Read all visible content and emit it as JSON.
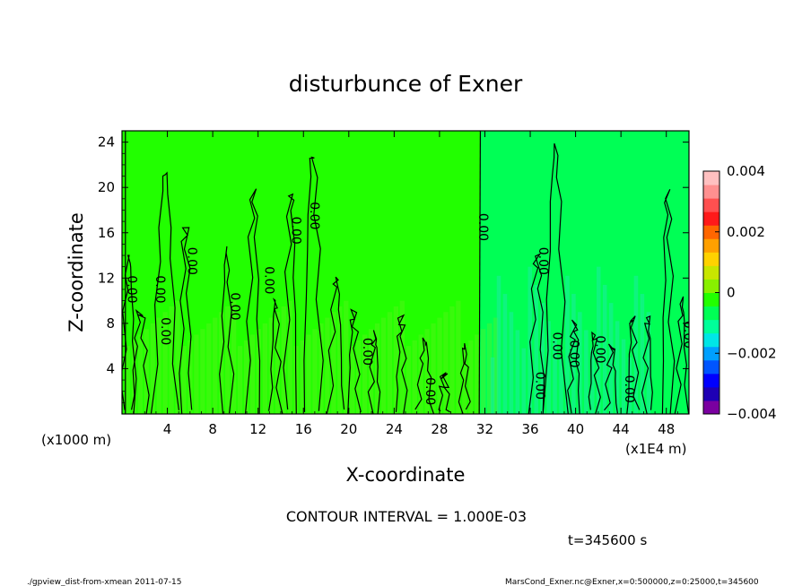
{
  "chart_data": {
    "type": "heatmap",
    "title": "disturbunce of Exner",
    "xlabel": "X-coordinate",
    "ylabel": "Z-coordinate",
    "x_unit": "(x1E4 m)",
    "y_unit": "(x1000 m)",
    "xlim": [
      0,
      50
    ],
    "ylim": [
      0,
      25
    ],
    "x_ticks": [
      4,
      8,
      12,
      16,
      20,
      24,
      28,
      32,
      36,
      40,
      44,
      48
    ],
    "y_ticks": [
      4,
      8,
      12,
      16,
      20,
      24
    ],
    "colorbar": {
      "vmin": -0.004,
      "vmax": 0.004,
      "tick_values": [
        0.004,
        0.002,
        0,
        -0.002,
        -0.004
      ],
      "tick_labels": [
        "0.004",
        "0.002",
        "0",
        "−0.002",
        "−0.004"
      ],
      "colors": [
        "#7a00a0",
        "#1e00b4",
        "#0000ff",
        "#0055ff",
        "#00a0ff",
        "#00e6e6",
        "#00ff9a",
        "#00ff55",
        "#22ff00",
        "#88f000",
        "#c8e600",
        "#ffd200",
        "#ffa000",
        "#ff6600",
        "#ff1a1a",
        "#ff5050",
        "#ff9090",
        "#ffc0c0"
      ]
    },
    "contour_interval_text": "CONTOUR INTERVAL = 1.000E-03",
    "contour_labels": [
      {
        "x": 0.5,
        "y": 11,
        "text": "0.00"
      },
      {
        "x": 3,
        "y": 11,
        "text": "0.00"
      },
      {
        "x": 3.5,
        "y": 7.3,
        "text": "0.00"
      },
      {
        "x": 5.8,
        "y": 13.5,
        "text": "0.00"
      },
      {
        "x": 9.6,
        "y": 9.5,
        "text": "0.00"
      },
      {
        "x": 12.6,
        "y": 11.8,
        "text": "0.00"
      },
      {
        "x": 15,
        "y": 16.2,
        "text": "0.00"
      },
      {
        "x": 16.6,
        "y": 17.5,
        "text": "0.00"
      },
      {
        "x": 21.3,
        "y": 5.5,
        "text": "0.00"
      },
      {
        "x": 26.8,
        "y": 2,
        "text": "0.00"
      },
      {
        "x": 31.5,
        "y": 16.5,
        "text": "0.00"
      },
      {
        "x": 36.5,
        "y": 2.5,
        "text": "0.00"
      },
      {
        "x": 36.8,
        "y": 13.5,
        "text": "0.00"
      },
      {
        "x": 38,
        "y": 6,
        "text": "0.00"
      },
      {
        "x": 39.5,
        "y": 5.3,
        "text": "0.00"
      },
      {
        "x": 41.8,
        "y": 5.7,
        "text": "0.00"
      },
      {
        "x": 44.4,
        "y": 2.2,
        "text": "0.00"
      },
      {
        "x": 49.6,
        "y": 7,
        "text": "0.00"
      }
    ]
  },
  "time_label": "t=345600 s",
  "footer_left": "./gpview_dist-from-xmean  2011-07-15",
  "footer_right": "MarsCond_Exner.nc@Exner,x=0:500000,z=0:25000,t=345600"
}
